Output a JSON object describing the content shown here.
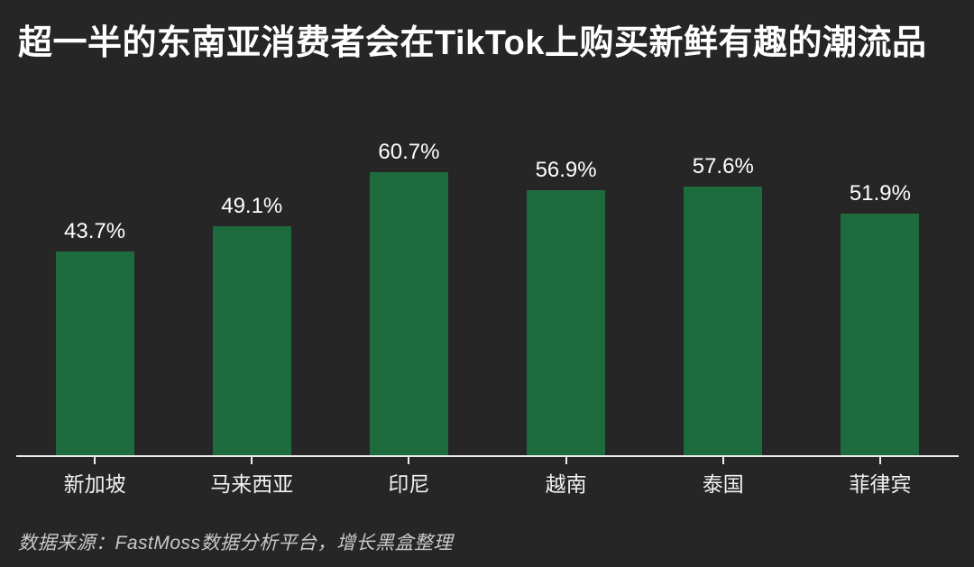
{
  "title": "超一半的东南亚消费者会在TikTok上购买新鲜有趣的潮流品",
  "source": "数据来源：FastMoss数据分析平台，增长黑盒整理",
  "colors": {
    "background": "#262626",
    "bar": "#1e6b3d",
    "axis": "#ececec",
    "title_text": "#ffffff",
    "value_text": "#ffffff",
    "category_text": "#f2f2f2",
    "source_text": "#c9c9c9"
  },
  "chart_data": {
    "type": "bar",
    "title": "超一半的东南亚消费者会在TikTok上购买新鲜有趣的潮流品",
    "categories": [
      "新加坡",
      "马来西亚",
      "印尼",
      "越南",
      "泰国",
      "菲律宾"
    ],
    "values": [
      43.7,
      49.1,
      60.7,
      56.9,
      57.6,
      51.9
    ],
    "value_labels": [
      "43.7%",
      "49.1%",
      "60.7%",
      "56.9%",
      "57.6%",
      "51.9%"
    ],
    "xlabel": "",
    "ylabel": "",
    "ylim": [
      0,
      70
    ],
    "grid": false,
    "legend": null,
    "annotations": [
      "数据来源：FastMoss数据分析平台，增长黑盒整理"
    ]
  }
}
